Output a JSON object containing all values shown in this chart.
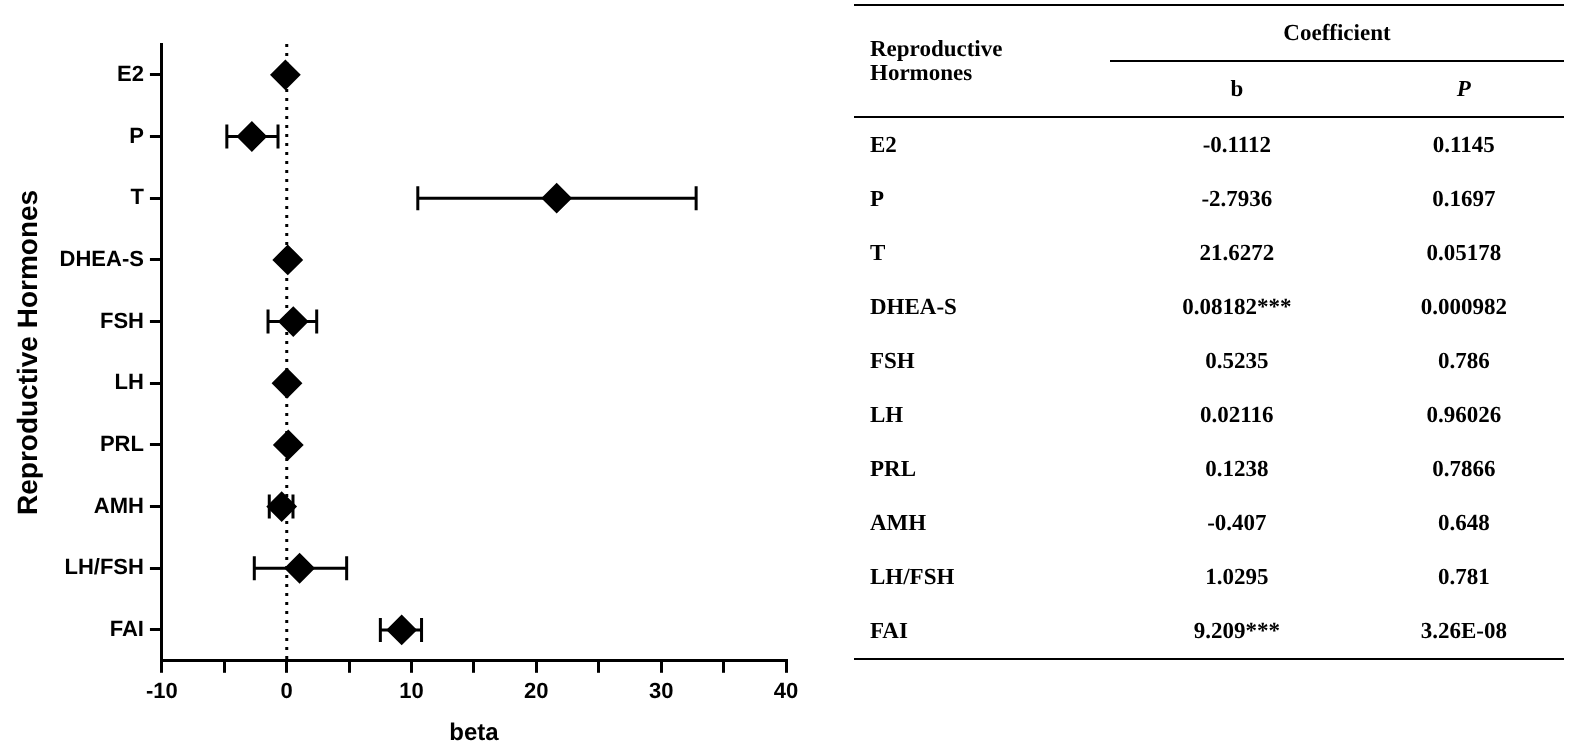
{
  "chart_data": {
    "type": "scatter",
    "orientation": "horizontal",
    "xlabel": "beta",
    "ylabel": "Reproductive Hormones",
    "categories": [
      "E2",
      "P",
      "T",
      "DHEA-S",
      "FSH",
      "LH",
      "PRL",
      "AMH",
      "LH/FSH",
      "FAI"
    ],
    "values": [
      -0.1112,
      -2.7936,
      21.6272,
      0.08182,
      0.5235,
      0.02116,
      0.1238,
      -0.407,
      1.0295,
      9.209
    ],
    "errors": [
      null,
      [
        -4.8,
        -0.7
      ],
      [
        10.5,
        32.8
      ],
      null,
      [
        -1.5,
        2.4
      ],
      null,
      null,
      [
        -1.4,
        0.5
      ],
      [
        -2.6,
        4.8
      ],
      [
        7.5,
        10.8
      ]
    ],
    "color": "#000000",
    "marker": "diamond",
    "grid": false,
    "legend": false,
    "xlim": [
      -10,
      40
    ],
    "xticks": [
      -10,
      {
        "value": -5,
        "label": null
      },
      0,
      {
        "value": 5,
        "label": null
      },
      10,
      {
        "value": 15,
        "label": null
      },
      20,
      {
        "value": 25,
        "label": null
      },
      30,
      {
        "value": 35,
        "label": null
      },
      40
    ],
    "ref_lines": [
      {
        "axis": "x",
        "value": 0,
        "line_style": "dotted",
        "color": "#000000"
      }
    ],
    "annotations": [
      "Coefficient",
      "b",
      "P",
      "-0.1112",
      "-2.7936",
      "21.6272",
      "0.08182***",
      "0.5235",
      "0.02116",
      "0.1238",
      "-0.407",
      "1.0295",
      "9.209***",
      "0.1145",
      "0.1697",
      "0.05178",
      "0.000982",
      "0.786",
      "0.96026",
      "0.7866",
      "0.648",
      "0.781",
      "3.26E-08"
    ]
  }
}
